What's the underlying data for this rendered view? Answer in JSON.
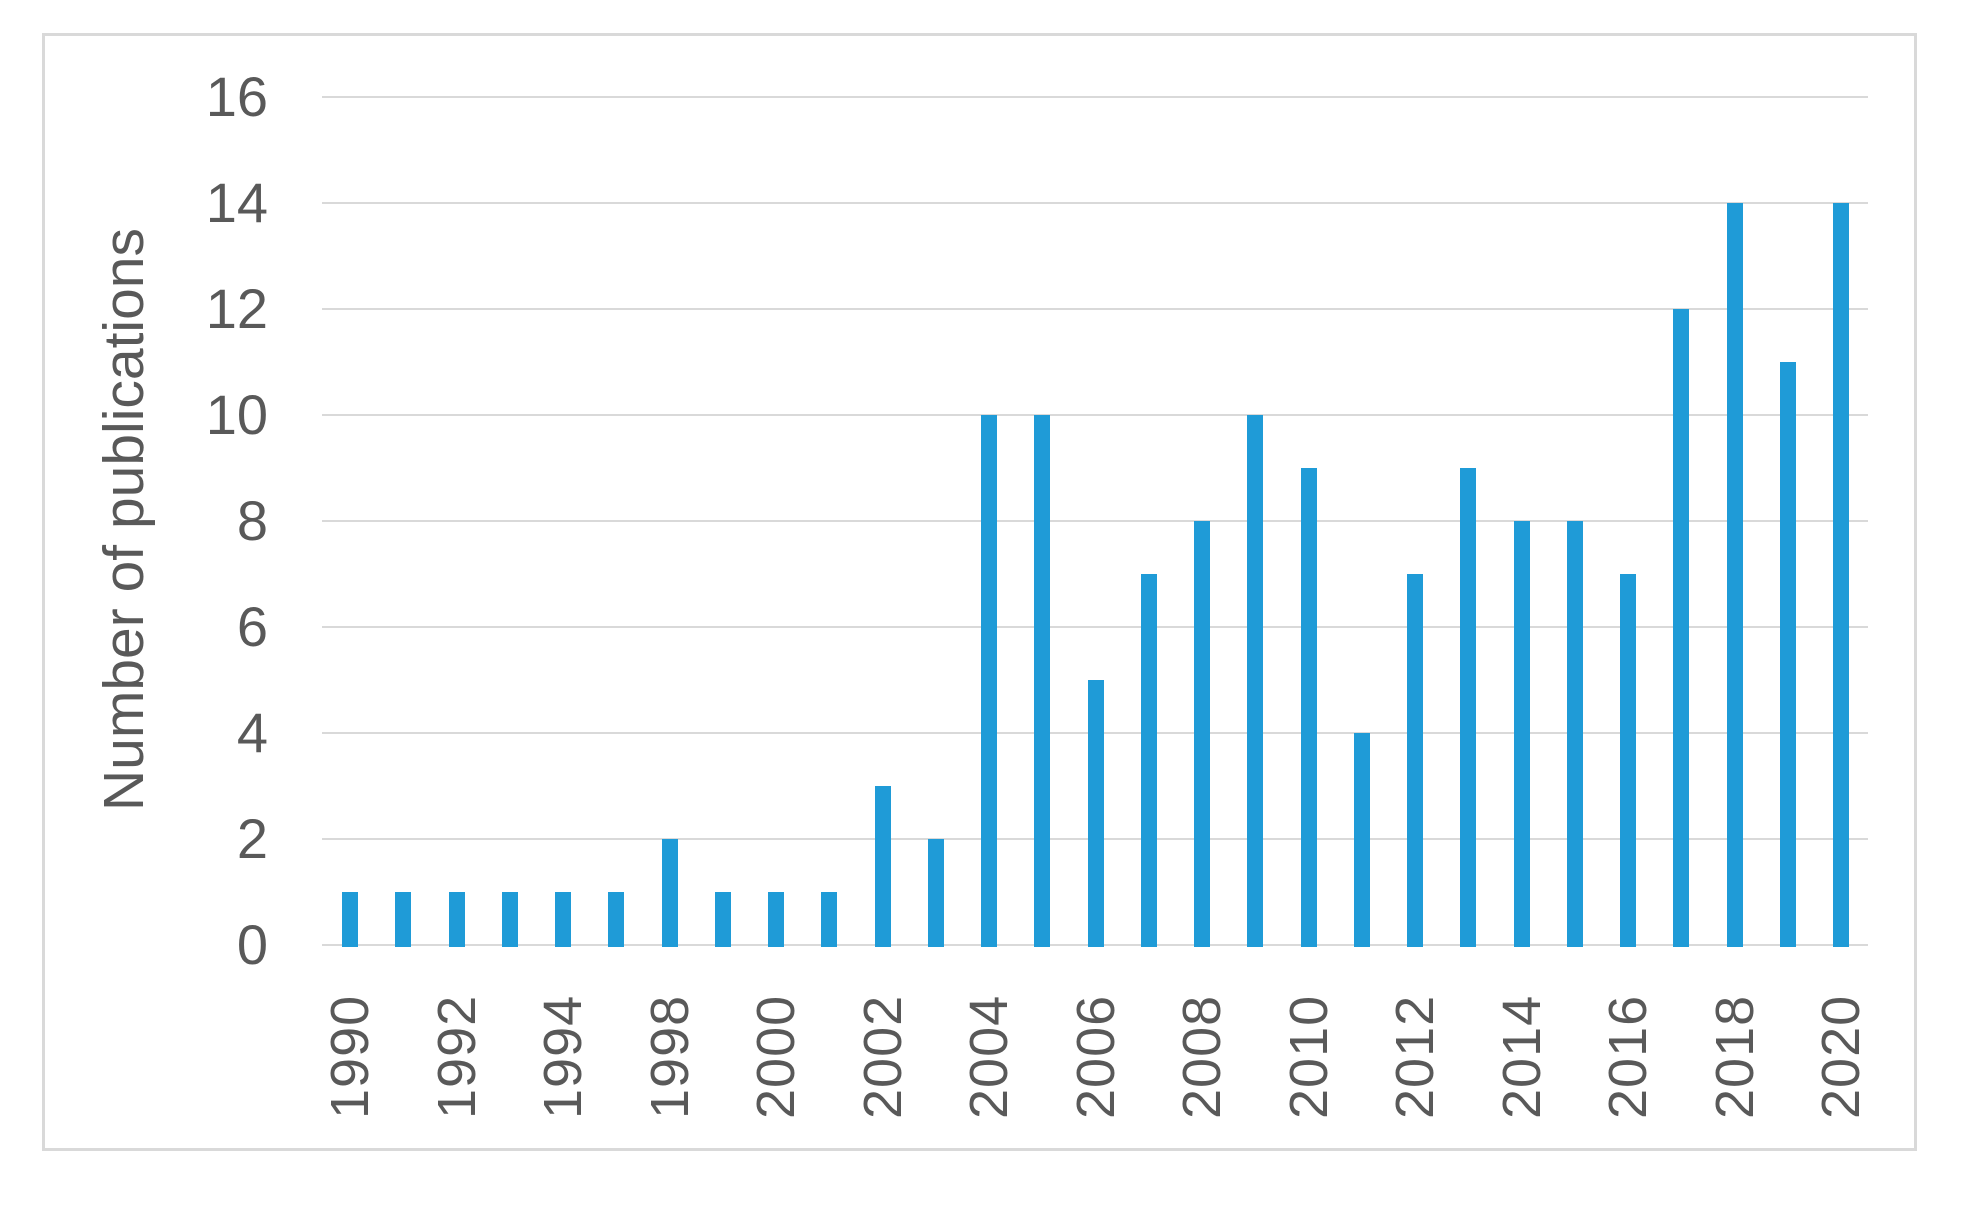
{
  "chart_data": {
    "type": "bar",
    "title": "",
    "xlabel": "",
    "ylabel": "Number of publications",
    "categories": [
      "1990",
      "1991",
      "1992",
      "1993",
      "1994",
      "1995",
      "1998",
      "1999",
      "2000",
      "2001",
      "2002",
      "2003",
      "2004",
      "2005",
      "2006",
      "2007",
      "2008",
      "2009",
      "2010",
      "2011",
      "2012",
      "2013",
      "2014",
      "2015",
      "2016",
      "2017",
      "2018",
      "2019",
      "2020"
    ],
    "values": [
      1,
      1,
      1,
      1,
      1,
      1,
      2,
      1,
      1,
      1,
      3,
      2,
      10,
      10,
      5,
      7,
      8,
      10,
      9,
      4,
      7,
      9,
      8,
      8,
      7,
      12,
      14,
      11,
      14
    ],
    "x_tick_labels_shown": [
      "1990",
      "1992",
      "1994",
      "1998",
      "2000",
      "2002",
      "2004",
      "2006",
      "2008",
      "2010",
      "2012",
      "2014",
      "2016",
      "2018",
      "2020"
    ],
    "x_tick_label_every": 2,
    "y_ticks": [
      0,
      2,
      4,
      6,
      8,
      10,
      12,
      14,
      16
    ],
    "ylim": [
      0,
      16
    ],
    "grid": true,
    "legend": "none",
    "bar_color": "#1f9bd7",
    "grid_color": "#d9d9d9",
    "text_color": "#595959",
    "frame_color": "#d9d9d9"
  }
}
